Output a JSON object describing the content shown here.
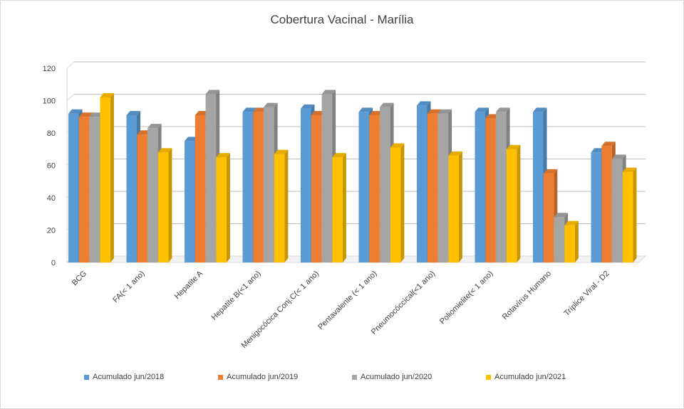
{
  "chart_data": {
    "type": "bar",
    "title": "Cobertura Vacinal - Marília",
    "xlabel": "",
    "ylabel": "",
    "ylim": [
      0,
      120
    ],
    "yticks": [
      0,
      20,
      40,
      60,
      80,
      100,
      120
    ],
    "grid": true,
    "legend_position": "bottom",
    "three_d": true,
    "categories": [
      "BCG",
      "FA(< 1 ano)",
      "Hepatite A",
      "Hepatite B(<1 ano)",
      "Menigocócica Conj.C(< 1 ano)",
      "Pentavalente (< 1 ano)",
      "Pneumocóccical(<1 ano)",
      "Poliomielite(< 1 ano)",
      "Rotavírus Humano",
      "Tríplice Viral - D2"
    ],
    "series": [
      {
        "name": "Acumulado jun/2018",
        "color": "#5b9bd5",
        "values": [
          92,
          91,
          75,
          93,
          95,
          93,
          97,
          93,
          93,
          68
        ]
      },
      {
        "name": "Acumulado jun/2019",
        "color": "#ed7d31",
        "values": [
          90,
          79,
          91,
          93,
          91,
          91,
          92,
          89,
          55,
          72
        ]
      },
      {
        "name": "Acumulado jun/2020",
        "color": "#a5a5a5",
        "values": [
          90,
          83,
          104,
          96,
          104,
          96,
          92,
          93,
          28,
          64
        ]
      },
      {
        "name": "Acumulado jun/2021",
        "color": "#ffc000",
        "values": [
          102,
          68,
          65,
          67,
          65,
          71,
          66,
          70,
          23,
          56
        ]
      }
    ]
  }
}
